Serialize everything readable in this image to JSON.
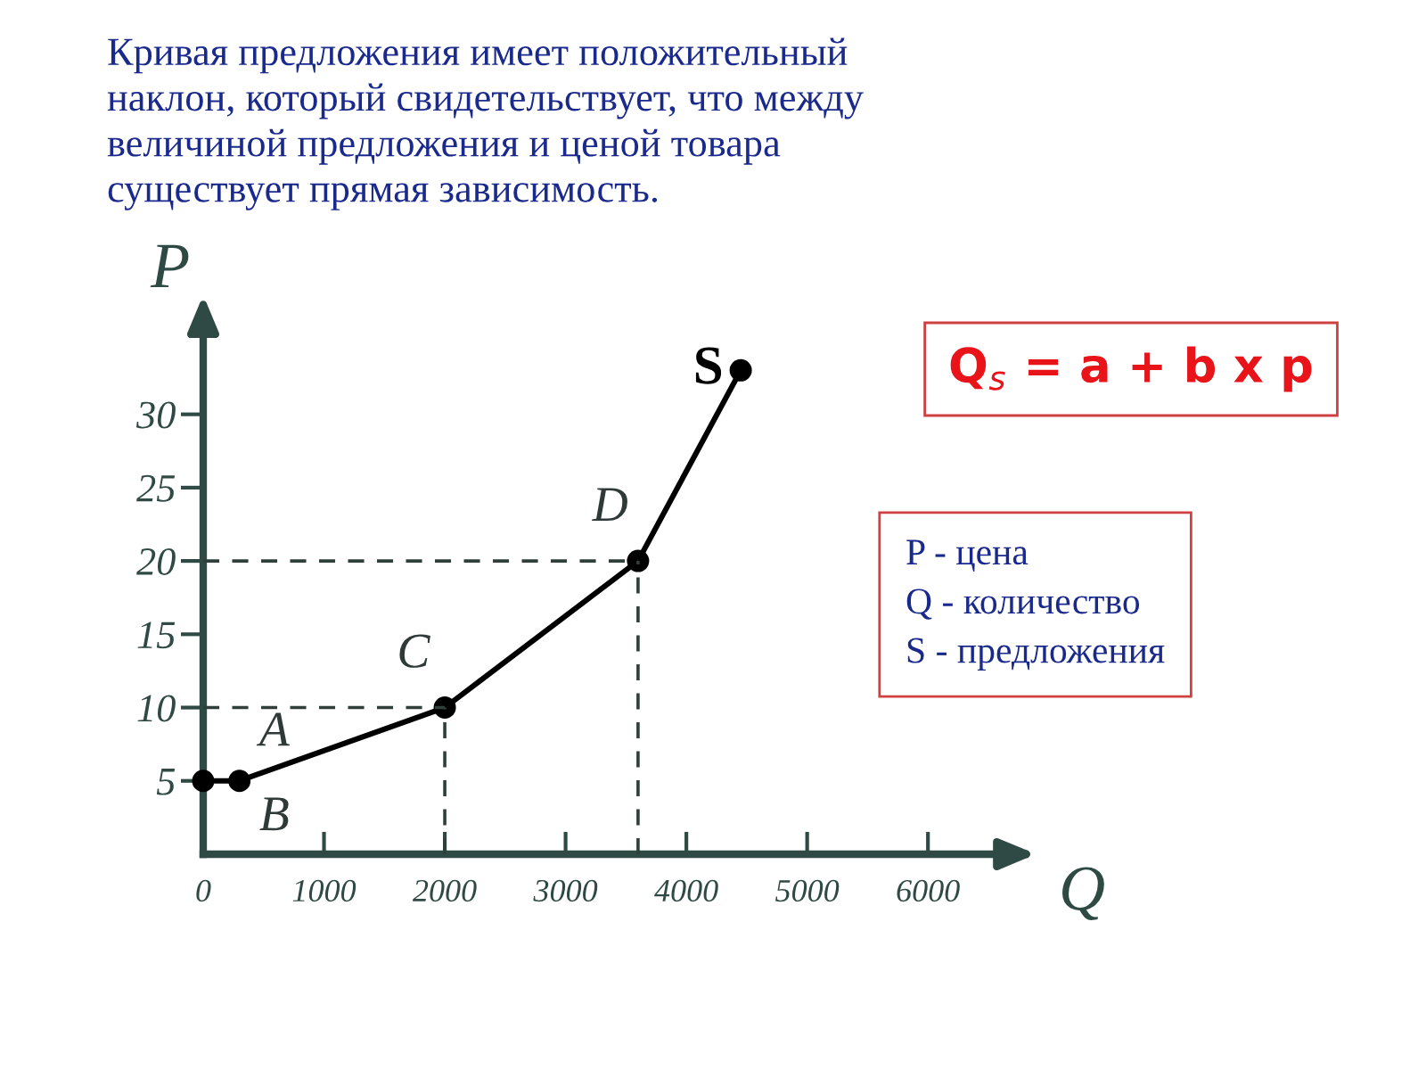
{
  "chart_data": {
    "type": "line",
    "title": "Кривая предложения имеет положительный\nнаклон, который свидетельствует, что между\nвеличиной предложения и ценой товара\nсуществует прямая зависимость.",
    "xlabel": "Q",
    "ylabel": "P",
    "x": [
      0,
      300,
      2000,
      3600,
      4450
    ],
    "series": [
      {
        "color": "#000000",
        "values": [
          5,
          5,
          10,
          20,
          33
        ],
        "marker": "circle",
        "line_style": "solid"
      },
      {
        "type": "line",
        "color": "#2f3f3a",
        "x": [
          0,
          2000
        ],
        "values": [
          10,
          10
        ],
        "marker": "none",
        "line_style": "dashed"
      },
      {
        "type": "line",
        "color": "#2f3f3a",
        "x": [
          0,
          3600
        ],
        "values": [
          20,
          20
        ],
        "marker": "none",
        "line_style": "dashed"
      },
      {
        "type": "line",
        "color": "#2f3f3a",
        "x": [
          2000,
          2000
        ],
        "values": [
          0,
          10
        ],
        "marker": "none",
        "line_style": "dashed"
      },
      {
        "type": "line",
        "color": "#2f3f3a",
        "x": [
          3600,
          3600
        ],
        "values": [
          0,
          20
        ],
        "marker": "none",
        "line_style": "dashed"
      }
    ],
    "xlim": [
      0,
      6800
    ],
    "ylim": [
      0,
      37
    ],
    "xticks": [
      {
        "value": 0,
        "label": "0"
      },
      1000,
      2000,
      3000,
      4000,
      5000,
      6000
    ],
    "yticks": [
      5,
      10,
      15,
      20,
      25,
      30
    ],
    "grid": false,
    "annotations": [
      {
        "text": "A",
        "x": 300,
        "y": 5
      },
      {
        "text": "B",
        "x": 300,
        "y": 5
      },
      {
        "text": "C",
        "x": 2000,
        "y": 10
      },
      {
        "text": "D",
        "x": 3600,
        "y": 20
      },
      {
        "text": "S",
        "x": 4450,
        "y": 33
      },
      "Q$_{s}$ = a + b x p",
      "P - цена\nQ - количество\nS - предложения"
    ]
  }
}
